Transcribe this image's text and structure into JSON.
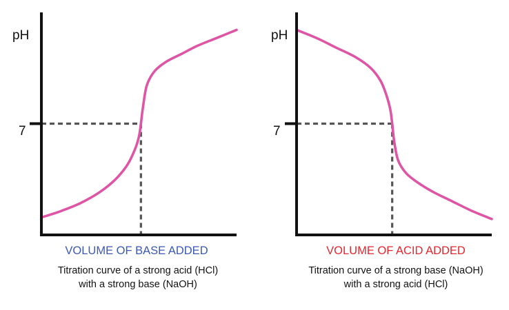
{
  "chart_data": [
    {
      "type": "line",
      "ylabel": "pH",
      "xlabel": "VOLUME OF BASE ADDED",
      "xlabel_color": "#3a58b4",
      "caption_line1": "Titration curve of a strong acid (HCl)",
      "caption_line2": "with a strong base (NaOH)",
      "y_tick_label": "7",
      "y_tick_value": 7,
      "equivalence_x": 0.51,
      "xlim": [
        0,
        1
      ],
      "ylim": [
        0,
        14
      ],
      "grid": false,
      "curve_color": "#de55a6",
      "guide_color": "#555555",
      "series": [
        {
          "x": [
            0.0,
            0.1,
            0.2,
            0.3,
            0.38,
            0.44,
            0.48,
            0.5,
            0.51,
            0.52,
            0.54,
            0.58,
            0.64,
            0.72,
            0.8,
            0.9,
            1.0
          ],
          "y": [
            1.1,
            1.5,
            2.0,
            2.7,
            3.5,
            4.4,
            5.4,
            6.2,
            7.0,
            8.0,
            9.4,
            10.3,
            10.9,
            11.4,
            11.9,
            12.4,
            12.9
          ]
        }
      ]
    },
    {
      "type": "line",
      "ylabel": "pH",
      "xlabel": "VOLUME OF ACID ADDED",
      "xlabel_color": "#e3262e",
      "caption_line1": "Titration curve of a strong base (NaOH)",
      "caption_line2": "with a strong acid (HCl)",
      "y_tick_label": "7",
      "y_tick_value": 7,
      "equivalence_x": 0.49,
      "xlim": [
        0,
        1
      ],
      "ylim": [
        0,
        14
      ],
      "grid": false,
      "curve_color": "#de55a6",
      "guide_color": "#555555",
      "series": [
        {
          "x": [
            0.0,
            0.1,
            0.2,
            0.3,
            0.38,
            0.43,
            0.46,
            0.48,
            0.49,
            0.5,
            0.52,
            0.56,
            0.62,
            0.7,
            0.8,
            0.9,
            1.0
          ],
          "y": [
            12.9,
            12.4,
            11.8,
            11.2,
            10.5,
            9.7,
            8.8,
            7.9,
            7.0,
            5.9,
            4.7,
            3.9,
            3.3,
            2.7,
            2.1,
            1.5,
            1.0
          ]
        }
      ]
    }
  ]
}
